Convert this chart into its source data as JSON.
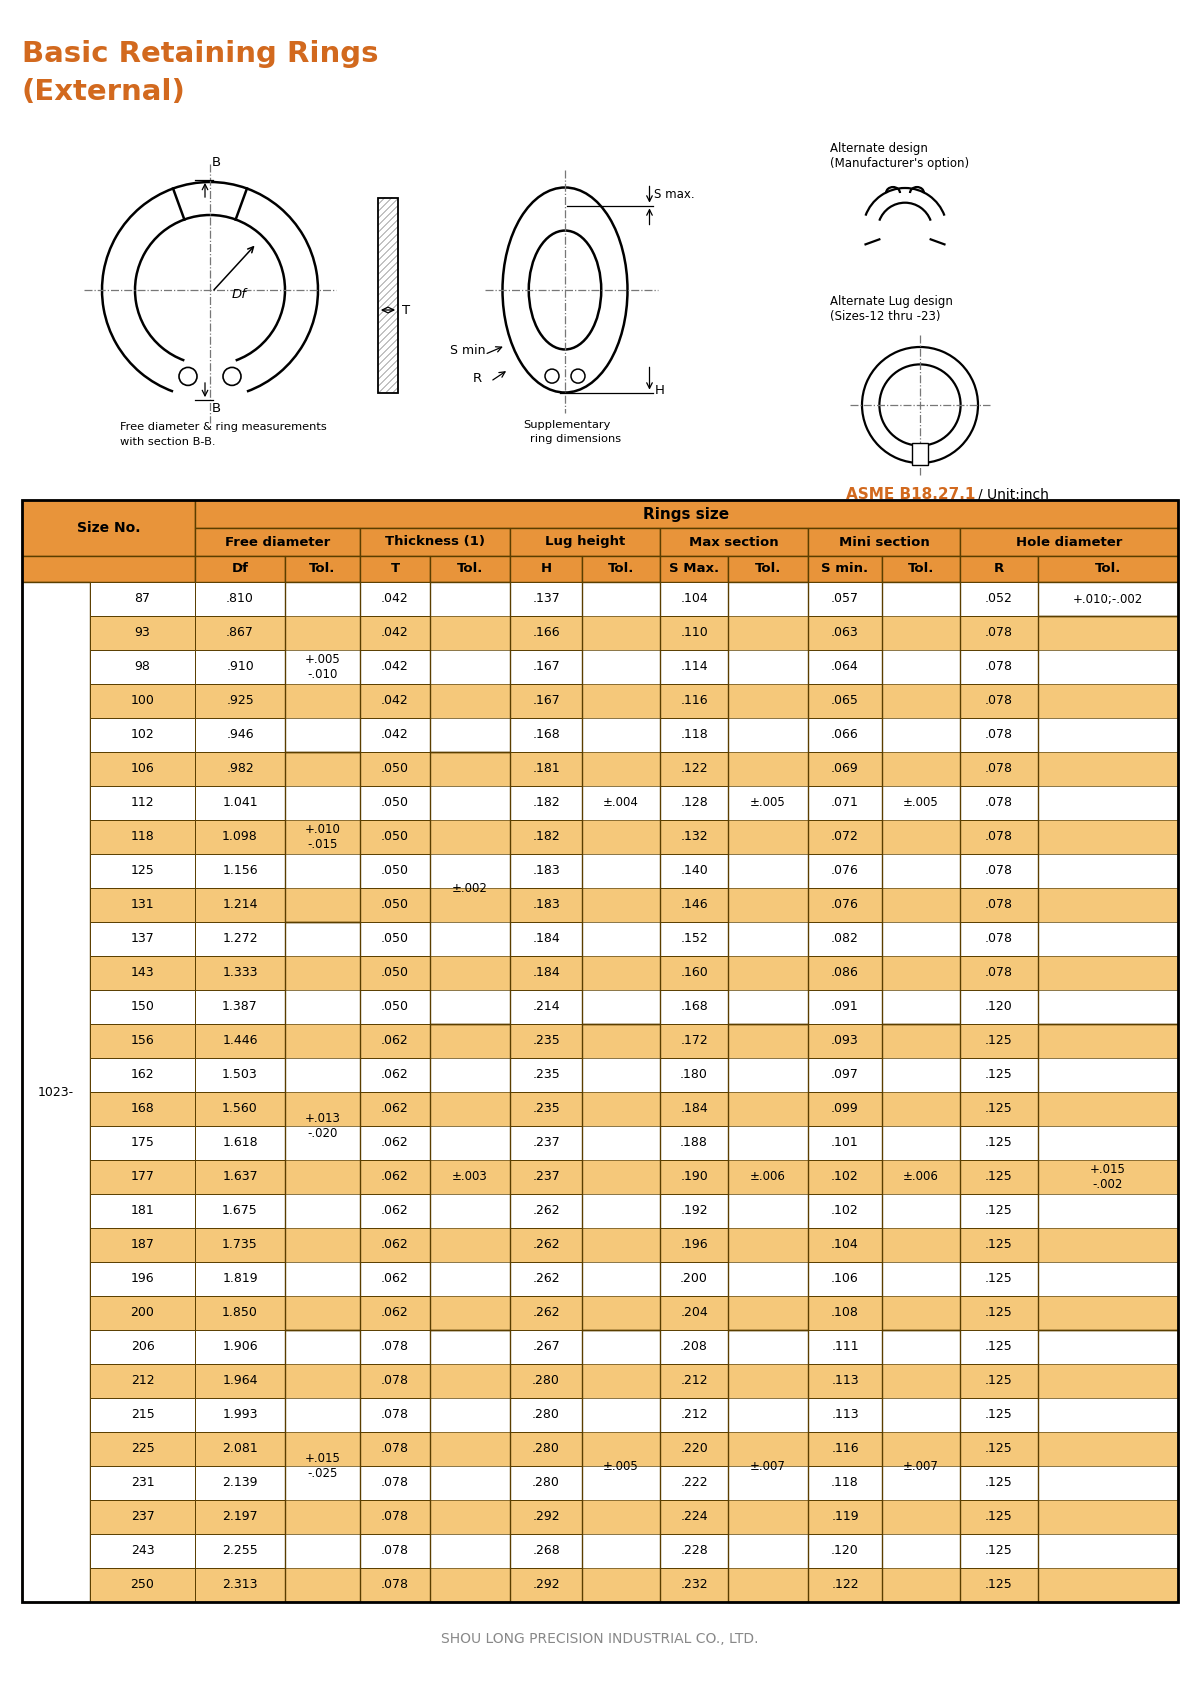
{
  "title_line1": "Basic Retaining Rings",
  "title_line2": "(External)",
  "title_color": "#D2691E",
  "footer": "SHOU LONG PRECISION INDUSTRIAL CO., LTD.",
  "header_bg": "#E8943A",
  "alt_row_bg": "#F5C87A",
  "white_row_bg": "#FFFFFF",
  "border_color": "#5a3e00",
  "size_prefix": "1023-",
  "rows": [
    {
      "size": "87",
      "Df": ".810",
      "T": ".042",
      "H": ".137",
      "SMax": ".104",
      "Smin": ".057",
      "R": ".052",
      "highlight": false
    },
    {
      "size": "93",
      "Df": ".867",
      "T": ".042",
      "H": ".166",
      "SMax": ".110",
      "Smin": ".063",
      "R": ".078",
      "highlight": true
    },
    {
      "size": "98",
      "Df": ".910",
      "T": ".042",
      "H": ".167",
      "SMax": ".114",
      "Smin": ".064",
      "R": ".078",
      "highlight": false
    },
    {
      "size": "100",
      "Df": ".925",
      "T": ".042",
      "H": ".167",
      "SMax": ".116",
      "Smin": ".065",
      "R": ".078",
      "highlight": true
    },
    {
      "size": "102",
      "Df": ".946",
      "T": ".042",
      "H": ".168",
      "SMax": ".118",
      "Smin": ".066",
      "R": ".078",
      "highlight": false
    },
    {
      "size": "106",
      "Df": ".982",
      "T": ".050",
      "H": ".181",
      "SMax": ".122",
      "Smin": ".069",
      "R": ".078",
      "highlight": true
    },
    {
      "size": "112",
      "Df": "1.041",
      "T": ".050",
      "H": ".182",
      "SMax": ".128",
      "Smin": ".071",
      "R": ".078",
      "highlight": false
    },
    {
      "size": "118",
      "Df": "1.098",
      "T": ".050",
      "H": ".182",
      "SMax": ".132",
      "Smin": ".072",
      "R": ".078",
      "highlight": true
    },
    {
      "size": "125",
      "Df": "1.156",
      "T": ".050",
      "H": ".183",
      "SMax": ".140",
      "Smin": ".076",
      "R": ".078",
      "highlight": false
    },
    {
      "size": "131",
      "Df": "1.214",
      "T": ".050",
      "H": ".183",
      "SMax": ".146",
      "Smin": ".076",
      "R": ".078",
      "highlight": true
    },
    {
      "size": "137",
      "Df": "1.272",
      "T": ".050",
      "H": ".184",
      "SMax": ".152",
      "Smin": ".082",
      "R": ".078",
      "highlight": false
    },
    {
      "size": "143",
      "Df": "1.333",
      "T": ".050",
      "H": ".184",
      "SMax": ".160",
      "Smin": ".086",
      "R": ".078",
      "highlight": true
    },
    {
      "size": "150",
      "Df": "1.387",
      "T": ".050",
      "H": ".214",
      "SMax": ".168",
      "Smin": ".091",
      "R": ".120",
      "highlight": false
    },
    {
      "size": "156",
      "Df": "1.446",
      "T": ".062",
      "H": ".235",
      "SMax": ".172",
      "Smin": ".093",
      "R": ".125",
      "highlight": true
    },
    {
      "size": "162",
      "Df": "1.503",
      "T": ".062",
      "H": ".235",
      "SMax": ".180",
      "Smin": ".097",
      "R": ".125",
      "highlight": false
    },
    {
      "size": "168",
      "Df": "1.560",
      "T": ".062",
      "H": ".235",
      "SMax": ".184",
      "Smin": ".099",
      "R": ".125",
      "highlight": true
    },
    {
      "size": "175",
      "Df": "1.618",
      "T": ".062",
      "H": ".237",
      "SMax": ".188",
      "Smin": ".101",
      "R": ".125",
      "highlight": false
    },
    {
      "size": "177",
      "Df": "1.637",
      "T": ".062",
      "H": ".237",
      "SMax": ".190",
      "Smin": ".102",
      "R": ".125",
      "highlight": true
    },
    {
      "size": "181",
      "Df": "1.675",
      "T": ".062",
      "H": ".262",
      "SMax": ".192",
      "Smin": ".102",
      "R": ".125",
      "highlight": false
    },
    {
      "size": "187",
      "Df": "1.735",
      "T": ".062",
      "H": ".262",
      "SMax": ".196",
      "Smin": ".104",
      "R": ".125",
      "highlight": true
    },
    {
      "size": "196",
      "Df": "1.819",
      "T": ".062",
      "H": ".262",
      "SMax": ".200",
      "Smin": ".106",
      "R": ".125",
      "highlight": false
    },
    {
      "size": "200",
      "Df": "1.850",
      "T": ".062",
      "H": ".262",
      "SMax": ".204",
      "Smin": ".108",
      "R": ".125",
      "highlight": true
    },
    {
      "size": "206",
      "Df": "1.906",
      "T": ".078",
      "H": ".267",
      "SMax": ".208",
      "Smin": ".111",
      "R": ".125",
      "highlight": false
    },
    {
      "size": "212",
      "Df": "1.964",
      "T": ".078",
      "H": ".280",
      "SMax": ".212",
      "Smin": ".113",
      "R": ".125",
      "highlight": true
    },
    {
      "size": "215",
      "Df": "1.993",
      "T": ".078",
      "H": ".280",
      "SMax": ".212",
      "Smin": ".113",
      "R": ".125",
      "highlight": false
    },
    {
      "size": "225",
      "Df": "2.081",
      "T": ".078",
      "H": ".280",
      "SMax": ".220",
      "Smin": ".116",
      "R": ".125",
      "highlight": true
    },
    {
      "size": "231",
      "Df": "2.139",
      "T": ".078",
      "H": ".280",
      "SMax": ".222",
      "Smin": ".118",
      "R": ".125",
      "highlight": false
    },
    {
      "size": "237",
      "Df": "2.197",
      "T": ".078",
      "H": ".292",
      "SMax": ".224",
      "Smin": ".119",
      "R": ".125",
      "highlight": true
    },
    {
      "size": "243",
      "Df": "2.255",
      "T": ".078",
      "H": ".268",
      "SMax": ".228",
      "Smin": ".120",
      "R": ".125",
      "highlight": false
    },
    {
      "size": "250",
      "Df": "2.313",
      "T": ".078",
      "H": ".292",
      "SMax": ".232",
      "Smin": ".122",
      "R": ".125",
      "highlight": true
    }
  ],
  "tol_Df": [
    {
      "r0": 0,
      "r1": 4,
      "text": "+.005\n-.010"
    },
    {
      "r0": 5,
      "r1": 9,
      "text": "+.010\n-.015"
    },
    {
      "r0": 10,
      "r1": 21,
      "text": "+.013\n-.020"
    },
    {
      "r0": 22,
      "r1": 29,
      "text": "+.015\n-.025"
    }
  ],
  "tol_T": [
    {
      "r0": 0,
      "r1": 4,
      "text": ""
    },
    {
      "r0": 5,
      "r1": 12,
      "text": "±.002"
    },
    {
      "r0": 13,
      "r1": 21,
      "text": "±.003"
    },
    {
      "r0": 22,
      "r1": 29,
      "text": ""
    }
  ],
  "tol_H": [
    {
      "r0": 0,
      "r1": 12,
      "text": "±.004"
    },
    {
      "r0": 13,
      "r1": 21,
      "text": ""
    },
    {
      "r0": 22,
      "r1": 29,
      "text": "±.005"
    }
  ],
  "tol_SM": [
    {
      "r0": 0,
      "r1": 12,
      "text": "±.005"
    },
    {
      "r0": 13,
      "r1": 21,
      "text": "±.006"
    },
    {
      "r0": 22,
      "r1": 29,
      "text": "±.007"
    }
  ],
  "tol_Sm": [
    {
      "r0": 0,
      "r1": 12,
      "text": "±.005"
    },
    {
      "r0": 13,
      "r1": 21,
      "text": "±.006"
    },
    {
      "r0": 22,
      "r1": 29,
      "text": "±.007"
    }
  ],
  "tol_R": [
    {
      "r0": 0,
      "r1": 0,
      "text": "+.010;-.002"
    },
    {
      "r0": 1,
      "r1": 12,
      "text": ""
    },
    {
      "r0": 13,
      "r1": 21,
      "text": "+.015\n-.002"
    },
    {
      "r0": 22,
      "r1": 29,
      "text": ""
    }
  ]
}
